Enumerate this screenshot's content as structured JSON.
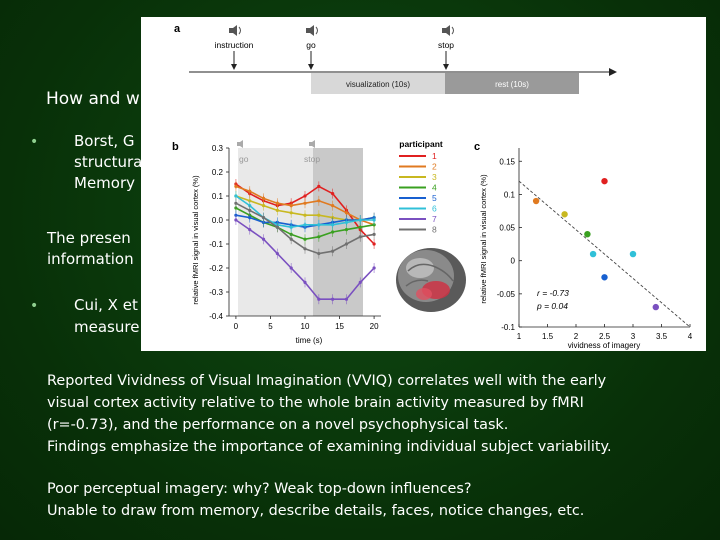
{
  "slide": {
    "heading": "How and w",
    "bullet1_lines": [
      "Borst, G",
      "structura",
      "Memory"
    ],
    "para_mid_lines": [
      "The presen",
      "information"
    ],
    "bullet2_lines": [
      "Cui, X et",
      "measure"
    ],
    "para1_lines": [
      "Reported Vividness of Visual Imagination (VVIQ) correlates well with the early",
      "visual cortex activity relative to the whole brain activity measured by fMRI",
      "(r=-0.73), and the performance on a novel psychophysical task.",
      "Findings emphasize the importance of examining individual subject variability."
    ],
    "para2_lines": [
      "Poor perceptual imagery: why? Weak top-down influences?",
      "Unable to draw from memory, describe details, faces, notice changes, etc."
    ]
  },
  "figure": {
    "panel_a": {
      "label": "a",
      "events": [
        "instruction",
        "go",
        "stop"
      ],
      "visualization_label": "visualization (10s)",
      "rest_label": "rest (10s)"
    },
    "panel_b": {
      "label": "b",
      "ylabel": "relative fMRI signal in visual cortex (%)",
      "xlabel": "time (s)",
      "go_label": "go",
      "stop_label": "stop",
      "yticks": [
        "0.3",
        "0.2",
        "0.1",
        "0.0",
        "-0.1",
        "-0.2",
        "-0.3",
        "-0.4"
      ],
      "xticks": [
        "0",
        "5",
        "10",
        "15",
        "20"
      ],
      "legend_title": "participant",
      "legend": [
        "1",
        "2",
        "3",
        "4",
        "5",
        "6",
        "7",
        "8"
      ]
    },
    "panel_c": {
      "label": "c",
      "ylabel": "relative fMRI signal in visual cortex (%)",
      "xlabel": "vividness of imagery",
      "yticks": [
        "0.15",
        "0.1",
        "0.05",
        "0",
        "-0.05",
        "-0.1"
      ],
      "xticks": [
        "1",
        "1.5",
        "2",
        "2.5",
        "3",
        "3.5",
        "4"
      ],
      "stat_r": "r = -0.73",
      "stat_p": "p = 0.04"
    }
  },
  "chart_data": [
    {
      "type": "line",
      "xlabel": "time (s)",
      "ylabel": "relative fMRI signal in visual cortex (%)",
      "xlim": [
        -1,
        21
      ],
      "ylim": [
        -0.4,
        0.3
      ],
      "x": [
        0,
        2,
        4,
        6,
        8,
        10,
        12,
        14,
        16,
        18,
        20
      ],
      "series": [
        {
          "name": "1",
          "color": "#e02020",
          "values": [
            0.15,
            0.11,
            0.08,
            0.06,
            0.07,
            0.1,
            0.14,
            0.11,
            0.04,
            -0.04,
            -0.1
          ]
        },
        {
          "name": "2",
          "color": "#e07a20",
          "values": [
            0.14,
            0.12,
            0.09,
            0.07,
            0.06,
            0.07,
            0.08,
            0.06,
            0.03,
            0.0,
            -0.02
          ]
        },
        {
          "name": "3",
          "color": "#c8b820",
          "values": [
            0.1,
            0.08,
            0.06,
            0.04,
            0.03,
            0.02,
            0.02,
            0.01,
            0.0,
            0.0,
            0.01
          ]
        },
        {
          "name": "4",
          "color": "#3aa020",
          "values": [
            0.05,
            0.02,
            -0.01,
            -0.03,
            -0.06,
            -0.08,
            -0.07,
            -0.05,
            -0.04,
            -0.03,
            -0.02
          ]
        },
        {
          "name": "5",
          "color": "#1860d0",
          "values": [
            0.02,
            0.01,
            -0.01,
            -0.01,
            -0.02,
            -0.03,
            -0.02,
            -0.01,
            0.0,
            0.0,
            0.01
          ]
        },
        {
          "name": "6",
          "color": "#30c0d8",
          "values": [
            0.1,
            0.06,
            0.01,
            -0.02,
            -0.03,
            -0.02,
            -0.02,
            -0.02,
            -0.01,
            0.0,
            0.0
          ]
        },
        {
          "name": "7",
          "color": "#7a50c0",
          "values": [
            0.0,
            -0.04,
            -0.08,
            -0.14,
            -0.2,
            -0.26,
            -0.33,
            -0.33,
            -0.33,
            -0.26,
            -0.2
          ]
        },
        {
          "name": "8",
          "color": "#707070",
          "values": [
            0.07,
            0.04,
            0.01,
            -0.03,
            -0.08,
            -0.12,
            -0.14,
            -0.13,
            -0.1,
            -0.07,
            -0.06
          ]
        }
      ]
    },
    {
      "type": "scatter",
      "xlabel": "vividness of imagery",
      "ylabel": "relative fMRI signal in visual cortex (%)",
      "xlim": [
        1,
        4
      ],
      "ylim": [
        -0.1,
        0.17
      ],
      "points": [
        {
          "x": 1.3,
          "y": 0.09,
          "color": "#e07a20"
        },
        {
          "x": 1.8,
          "y": 0.07,
          "color": "#c8b820"
        },
        {
          "x": 2.2,
          "y": 0.04,
          "color": "#3aa020"
        },
        {
          "x": 2.3,
          "y": 0.01,
          "color": "#30c0d8"
        },
        {
          "x": 2.5,
          "y": 0.12,
          "color": "#e02020"
        },
        {
          "x": 2.5,
          "y": -0.025,
          "color": "#1860d0"
        },
        {
          "x": 3.0,
          "y": 0.01,
          "color": "#30c0d8"
        },
        {
          "x": 3.4,
          "y": -0.07,
          "color": "#7a50c0"
        }
      ],
      "fit": {
        "x": [
          1.0,
          4.0
        ],
        "y": [
          0.12,
          -0.1
        ]
      },
      "annotations": [
        "r = -0.73",
        "p = 0.04"
      ]
    }
  ]
}
